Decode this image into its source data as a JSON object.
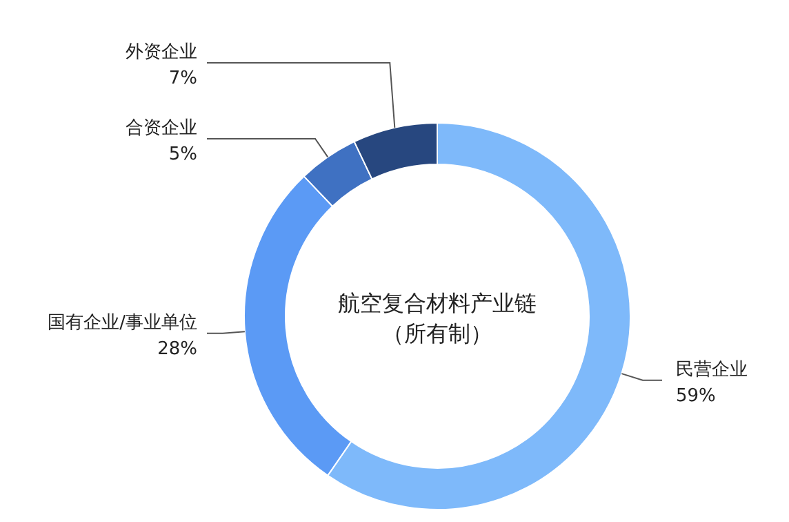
{
  "chart_data": {
    "type": "donut",
    "title": "航空复合材料产业链",
    "subtitle": "（所有制）",
    "categories": [
      "民营企业",
      "国有企业/事业单位",
      "合资企业",
      "外资企业"
    ],
    "values": [
      59,
      28,
      5,
      7
    ],
    "colors": [
      "#7eb9fa",
      "#5b9af5",
      "#3f71c2",
      "#27477f"
    ],
    "value_labels": [
      "59%",
      "28%",
      "5%",
      "7%"
    ],
    "legend": false
  }
}
